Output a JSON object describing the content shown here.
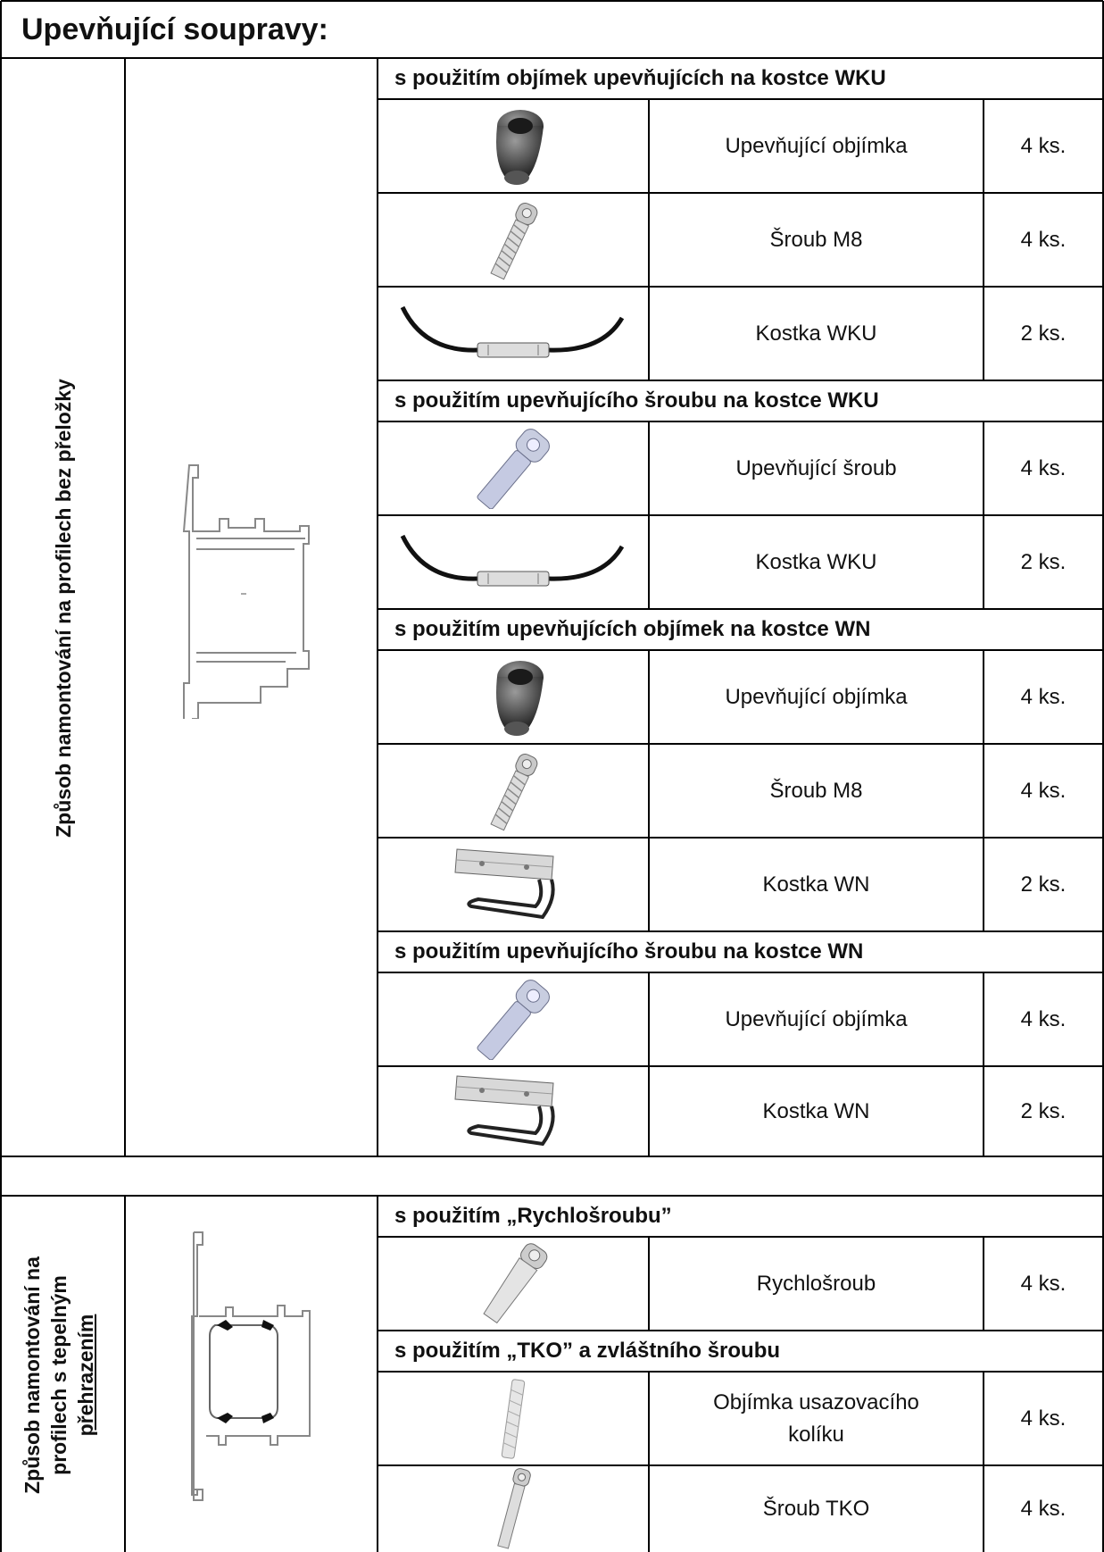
{
  "title": "Upevňující soupravy:",
  "section1": {
    "side_label": "Způsob namontování na profilech bez přeložky",
    "groups": [
      {
        "heading": "s použitím objímek upevňujících na kostce WKU",
        "items": [
          {
            "icon": "sleeve-icon",
            "name": "Upevňující objímka",
            "qty": "4 ks."
          },
          {
            "icon": "screw-m8-icon",
            "name": "Šroub M8",
            "qty": "4 ks."
          },
          {
            "icon": "wku-block-icon",
            "name": "Kostka WKU",
            "qty": "2 ks."
          }
        ]
      },
      {
        "heading": "s použitím upevňujícího šroubu na kostce WKU",
        "items": [
          {
            "icon": "fixing-screw-icon",
            "name": "Upevňující šroub",
            "qty": "4 ks."
          },
          {
            "icon": "wku-block-icon",
            "name": "Kostka WKU",
            "qty": "2 ks."
          }
        ]
      },
      {
        "heading": "s použitím upevňujících objímek na kostce WN",
        "items": [
          {
            "icon": "sleeve-icon",
            "name": "Upevňující objímka",
            "qty": "4 ks."
          },
          {
            "icon": "screw-m8-icon",
            "name": "Šroub M8",
            "qty": "4 ks."
          },
          {
            "icon": "wn-block-icon",
            "name": "Kostka WN",
            "qty": "2 ks."
          }
        ]
      },
      {
        "heading": "s použitím upevňujícího šroubu na kostce WN",
        "items": [
          {
            "icon": "fixing-screw-icon",
            "name": "Upevňující objímka",
            "qty": "4 ks."
          },
          {
            "icon": "wn-block-icon",
            "name": "Kostka WN",
            "qty": "2 ks."
          }
        ]
      }
    ]
  },
  "section2": {
    "side_label_lines": [
      "Způsob namontování na",
      "profilech s tepelným",
      "přehrazením"
    ],
    "groups": [
      {
        "heading": "s použitím „Rychlošroubu”",
        "items": [
          {
            "icon": "quick-screw-icon",
            "name": "Rychlošroub",
            "qty": "4 ks."
          }
        ]
      },
      {
        "heading": "s použitím „TKO” a zvláštního šroubu",
        "items": [
          {
            "icon": "dowel-sleeve-icon",
            "name": "Objímka usazovacího kolíku",
            "qty": "4 ks."
          },
          {
            "icon": "tko-screw-icon",
            "name": "Šroub TKO",
            "qty": "4 ks."
          }
        ]
      }
    ]
  }
}
